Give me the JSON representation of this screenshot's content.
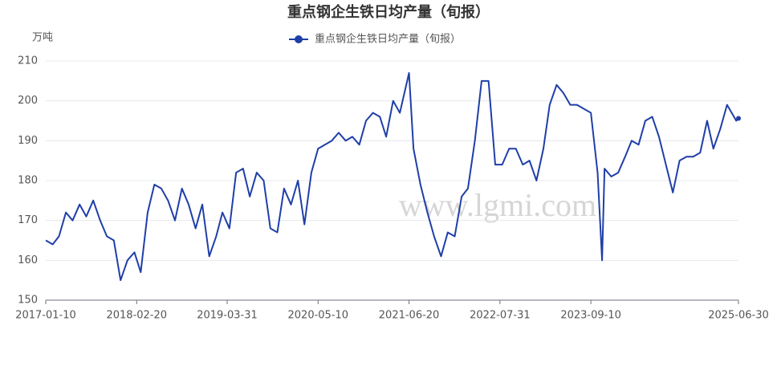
{
  "chart_data": {
    "type": "line",
    "title": "重点钢企生铁日均产量（旬报）",
    "y_unit": "万吨",
    "watermark": "www.lgmi.com",
    "x": [
      "2017-01-10",
      "2017-02-10",
      "2017-03-10",
      "2017-04-10",
      "2017-05-10",
      "2017-06-10",
      "2017-07-10",
      "2017-08-10",
      "2017-09-10",
      "2017-10-10",
      "2017-11-10",
      "2017-12-10",
      "2018-01-10",
      "2018-02-10",
      "2018-03-10",
      "2018-04-10",
      "2018-05-10",
      "2018-06-10",
      "2018-07-10",
      "2018-08-10",
      "2018-09-10",
      "2018-10-10",
      "2018-11-10",
      "2018-12-10",
      "2019-01-10",
      "2019-02-10",
      "2019-03-10",
      "2019-04-10",
      "2019-05-10",
      "2019-06-10",
      "2019-07-10",
      "2019-08-10",
      "2019-09-10",
      "2019-10-10",
      "2019-11-10",
      "2019-12-10",
      "2020-01-10",
      "2020-02-10",
      "2020-03-10",
      "2020-04-10",
      "2020-05-10",
      "2020-06-10",
      "2020-07-10",
      "2020-08-10",
      "2020-09-10",
      "2020-10-10",
      "2020-11-10",
      "2020-12-10",
      "2021-01-10",
      "2021-02-10",
      "2021-03-10",
      "2021-04-10",
      "2021-05-10",
      "2021-06-20",
      "2021-07-10",
      "2021-08-10",
      "2021-09-10",
      "2021-10-10",
      "2021-11-10",
      "2021-12-10",
      "2022-01-10",
      "2022-02-10",
      "2022-03-10",
      "2022-04-10",
      "2022-05-10",
      "2022-06-10",
      "2022-07-10",
      "2022-08-10",
      "2022-09-10",
      "2022-10-10",
      "2022-11-10",
      "2022-12-10",
      "2023-01-10",
      "2023-02-10",
      "2023-03-10",
      "2023-04-10",
      "2023-05-10",
      "2023-06-10",
      "2023-07-10",
      "2023-08-10",
      "2023-09-10",
      "2023-10-10",
      "2023-10-30",
      "2023-11-10",
      "2023-12-10",
      "2024-01-10",
      "2024-02-10",
      "2024-03-10",
      "2024-04-10",
      "2024-05-10",
      "2024-06-10",
      "2024-07-10",
      "2024-08-10",
      "2024-09-10",
      "2024-10-10",
      "2024-11-10",
      "2024-12-10",
      "2025-01-10",
      "2025-02-10",
      "2025-03-10",
      "2025-04-10",
      "2025-05-10",
      "2025-06-10",
      "2025-06-20",
      "2025-06-30"
    ],
    "series": [
      {
        "name": "重点钢企生铁日均产量（旬报）",
        "color": "#1f3fa8",
        "values": [
          165,
          164,
          166,
          172,
          170,
          174,
          171,
          175,
          170,
          166,
          165,
          155,
          160,
          162,
          157,
          172,
          179,
          178,
          175,
          170,
          178,
          174,
          168,
          174,
          161,
          166,
          172,
          168,
          182,
          183,
          176,
          182,
          180,
          168,
          167,
          178,
          174,
          180,
          169,
          182,
          188,
          189,
          190,
          192,
          190,
          191,
          189,
          195,
          197,
          196,
          191,
          200,
          197,
          207,
          188,
          179,
          172,
          166,
          161,
          167,
          166,
          176,
          178,
          190,
          205,
          205,
          184,
          184,
          188,
          188,
          184,
          185,
          180,
          188,
          199,
          204,
          202,
          199,
          199,
          198,
          197,
          182,
          160,
          183,
          181,
          182,
          186,
          190,
          189,
          195,
          196,
          191,
          184,
          177,
          185,
          186,
          186,
          187,
          195,
          188,
          193,
          199,
          196,
          195,
          195.6
        ]
      }
    ],
    "ylim": [
      150,
      210
    ],
    "yticks": [
      150,
      160,
      170,
      180,
      190,
      200,
      210
    ],
    "xlim": [
      "2017-01-10",
      "2025-06-30"
    ],
    "xticks": [
      "2017-01-10",
      "2018-02-20",
      "2019-03-31",
      "2020-05-10",
      "2021-06-20",
      "2022-07-31",
      "2023-09-10",
      "2025-06-30"
    ],
    "grid": true
  }
}
